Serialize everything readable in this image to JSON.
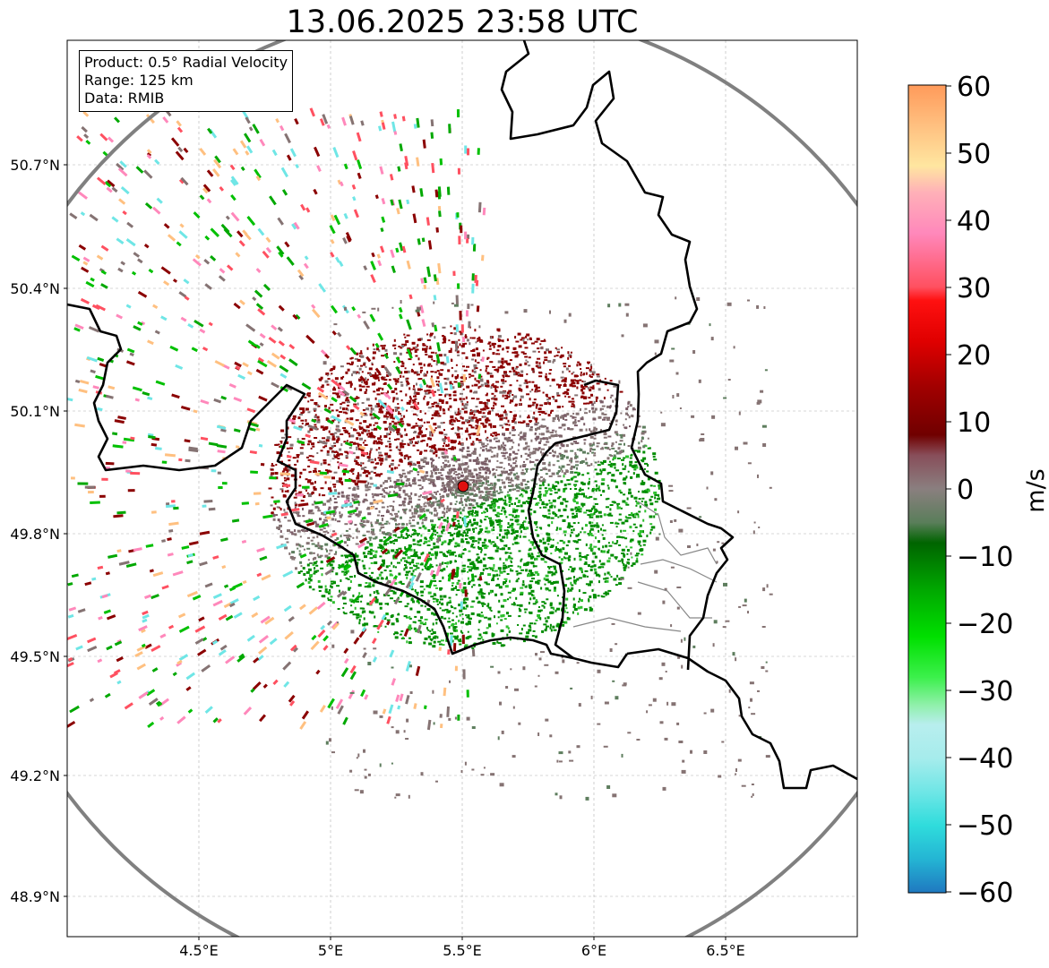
{
  "title": "13.06.2025 23:58 UTC",
  "info": {
    "product": "Product: 0.5° Radial Velocity",
    "range": "Range: 125 km",
    "data": "Data: RMIB"
  },
  "map": {
    "lon_range": [
      4.0,
      7.0
    ],
    "lat_range": [
      48.8,
      51.0
    ],
    "lon_ticks": [
      "4.5°E",
      "5°E",
      "5.5°E",
      "6°E",
      "6.5°E"
    ],
    "lat_ticks": [
      "50.7°N",
      "50.4°N",
      "50.1°N",
      "49.8°N",
      "49.5°N",
      "49.2°N",
      "48.9°N"
    ],
    "radar_site": {
      "lon": 5.505,
      "lat": 49.914
    },
    "range_ring_km": 125,
    "grid": true
  },
  "colorbar": {
    "unit": "m/s",
    "min": -60,
    "max": 60,
    "ticks": [
      "60",
      "50",
      "40",
      "30",
      "20",
      "10",
      "0",
      "−10",
      "−20",
      "−30",
      "−40",
      "−50",
      "−60"
    ],
    "stops": [
      {
        "v": -60,
        "color": "#1f78c0"
      },
      {
        "v": -55,
        "color": "#24b5d4"
      },
      {
        "v": -50,
        "color": "#2fdcdc"
      },
      {
        "v": -45,
        "color": "#6fe6e6"
      },
      {
        "v": -40,
        "color": "#a6ecec"
      },
      {
        "v": -35,
        "color": "#b8eeee"
      },
      {
        "v": -32,
        "color": "#8ef0a8"
      },
      {
        "v": -28,
        "color": "#3cf04c"
      },
      {
        "v": -22,
        "color": "#00e000"
      },
      {
        "v": -15,
        "color": "#00a800"
      },
      {
        "v": -8,
        "color": "#006400"
      },
      {
        "v": -5,
        "color": "#5a7e5a"
      },
      {
        "v": 0,
        "color": "#8a7f7f"
      },
      {
        "v": 5,
        "color": "#884e5a"
      },
      {
        "v": 8,
        "color": "#700000"
      },
      {
        "v": 15,
        "color": "#a00000"
      },
      {
        "v": 22,
        "color": "#e00000"
      },
      {
        "v": 28,
        "color": "#ff1010"
      },
      {
        "v": 30,
        "color": "#ff5060"
      },
      {
        "v": 38,
        "color": "#ff88bb"
      },
      {
        "v": 44,
        "color": "#ffb0b8"
      },
      {
        "v": 48,
        "color": "#ffe6a0"
      },
      {
        "v": 54,
        "color": "#ffc080"
      },
      {
        "v": 60,
        "color": "#ff9a5a"
      }
    ]
  },
  "echo_colors": {
    "inbound_green": "#008c00",
    "outbound_red": "#8b0000",
    "near_zero": "#857373",
    "site_marker": "#e01010"
  }
}
